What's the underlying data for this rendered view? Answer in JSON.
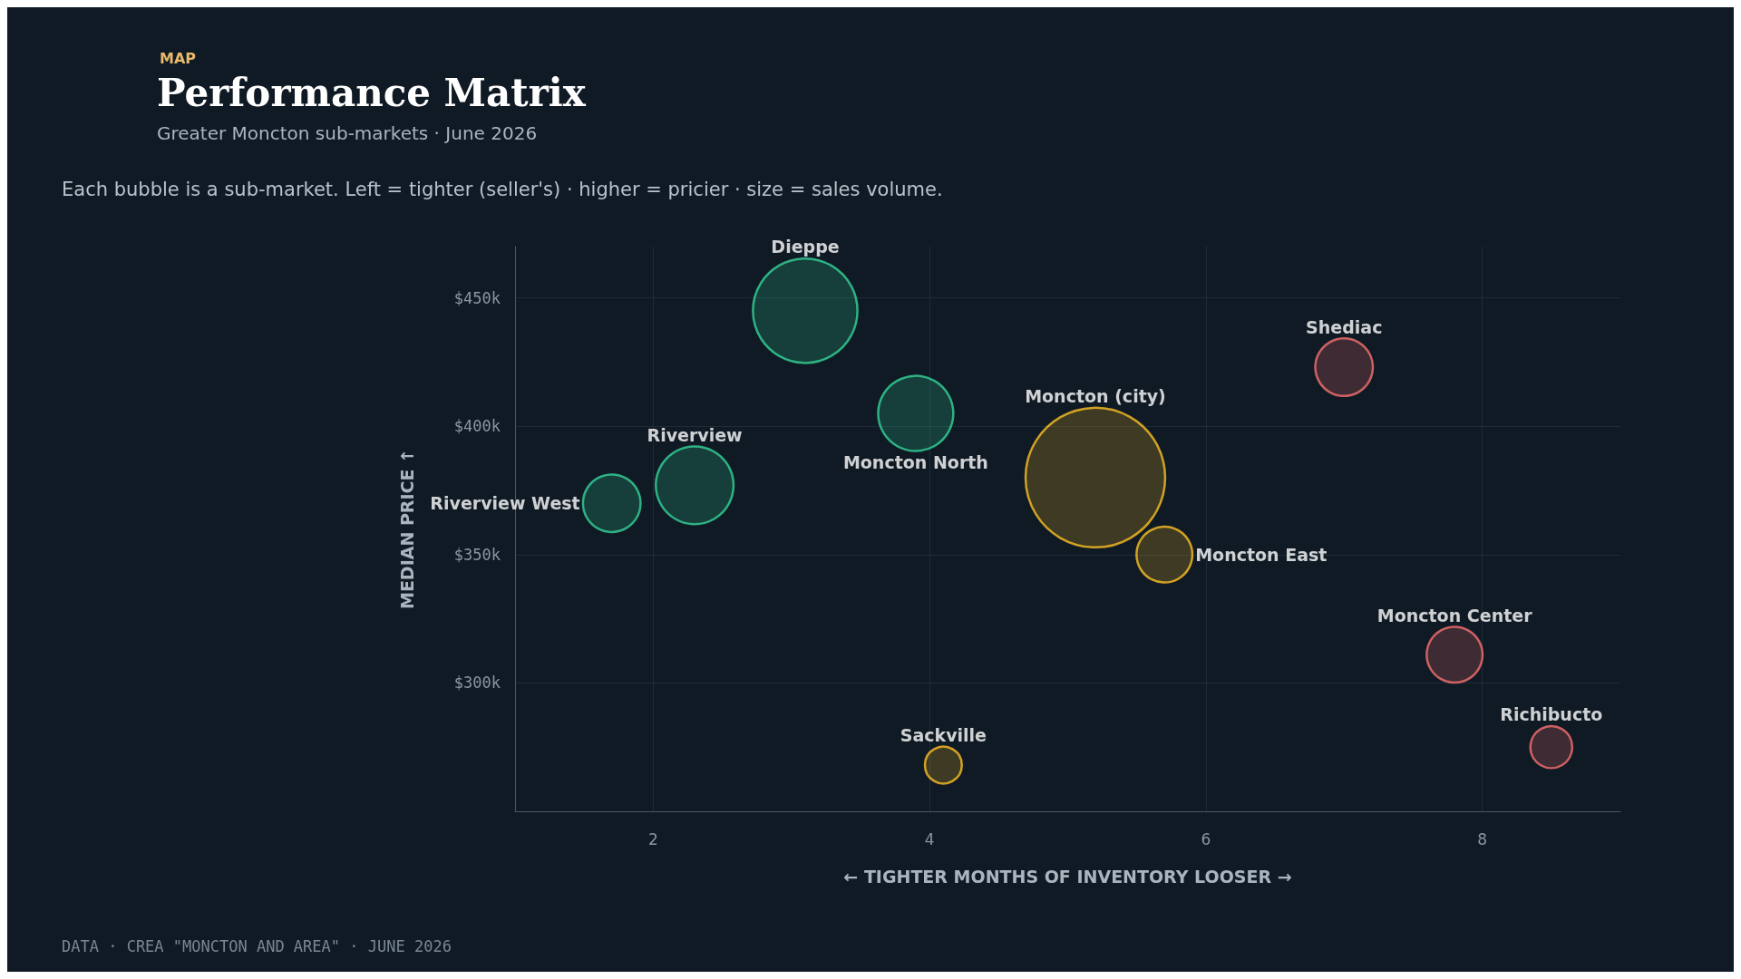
{
  "chart_data": {
    "type": "bubble",
    "title": "Performance Matrix",
    "subtitle": "Greater Moncton sub-markets · June 2026",
    "xlabel": "← TIGHTER MONTHS OF INVENTORY LOOSER →",
    "ylabel": "MEDIAN PRICE ↑",
    "annotations": [
      "MAP",
      "Each bubble is a sub-market. Left = tighter (seller's) · higher = pricier · size = sales volume.",
      "DATA · CREA \"MONCTON AND AREA\" · JUNE 2026"
    ],
    "xlim": [
      1,
      9
    ],
    "xticks": [
      2,
      4,
      6,
      8
    ],
    "ylim": [
      250,
      470
    ],
    "yticks": [
      {
        "value": 300,
        "label": "$300k"
      },
      {
        "value": 350,
        "label": "$350k"
      },
      {
        "value": 400,
        "label": "$400k"
      },
      {
        "value": 450,
        "label": "$450k"
      }
    ],
    "grid": true,
    "legend": false,
    "marker": "circle",
    "series": [
      {
        "name": "Dieppe",
        "color": "#34d399",
        "x": [
          3.1
        ],
        "values": [
          445
        ],
        "sizes": [
          0.56
        ]
      },
      {
        "name": "Moncton North",
        "color": "#34d399",
        "x": [
          3.9
        ],
        "values": [
          405
        ],
        "sizes": [
          0.29
        ]
      },
      {
        "name": "Riverview",
        "color": "#34d399",
        "x": [
          2.3
        ],
        "values": [
          377
        ],
        "sizes": [
          0.31
        ]
      },
      {
        "name": "Riverview West",
        "color": "#34d399",
        "x": [
          1.7
        ],
        "values": [
          370
        ],
        "sizes": [
          0.17
        ]
      },
      {
        "name": "Moncton (city)",
        "color": "#fbbf24",
        "x": [
          5.2
        ],
        "values": [
          380
        ],
        "sizes": [
          1
        ]
      },
      {
        "name": "Moncton East",
        "color": "#fbbf24",
        "x": [
          5.7
        ],
        "values": [
          350
        ],
        "sizes": [
          0.16
        ]
      },
      {
        "name": "Sackville",
        "color": "#fbbf24",
        "x": [
          4.1
        ],
        "values": [
          268
        ],
        "sizes": [
          0.07
        ]
      },
      {
        "name": "Shediac",
        "color": "#f87171",
        "x": [
          7.0
        ],
        "values": [
          423
        ],
        "sizes": [
          0.17
        ]
      },
      {
        "name": "Moncton Center",
        "color": "#f87171",
        "x": [
          7.8
        ],
        "values": [
          311
        ],
        "sizes": [
          0.16
        ]
      },
      {
        "name": "Richibucto",
        "color": "#f87171",
        "x": [
          8.5
        ],
        "values": [
          275
        ],
        "sizes": [
          0.09
        ]
      }
    ]
  }
}
